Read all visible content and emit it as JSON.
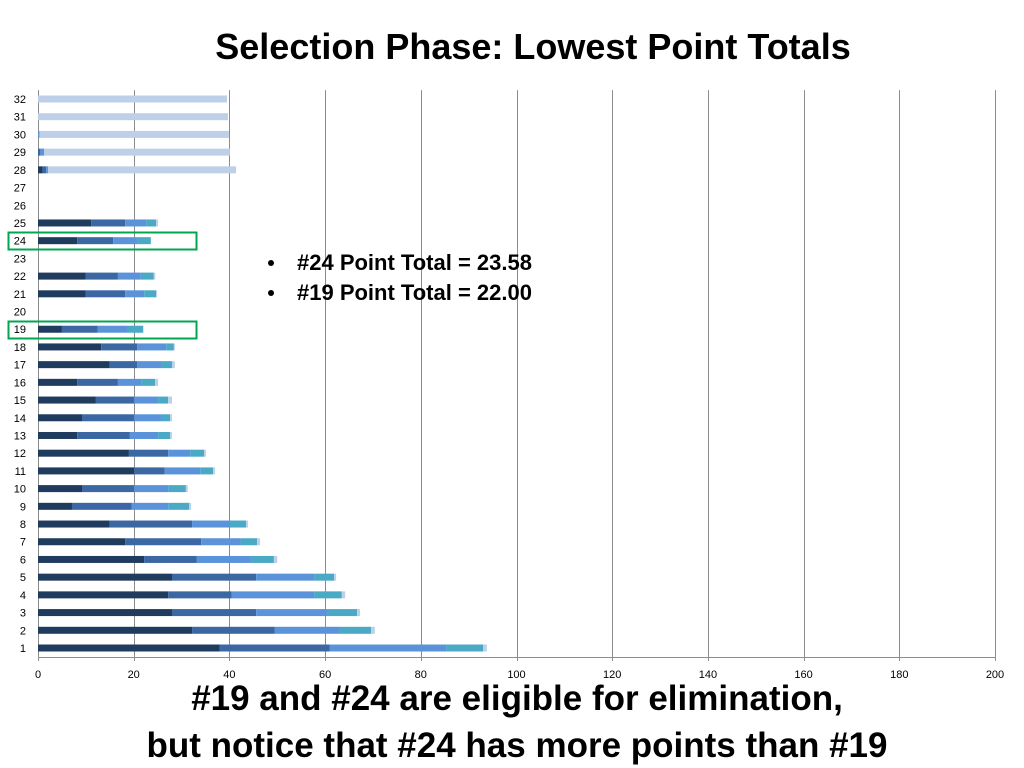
{
  "slide": {
    "title": "Selection Phase: Lowest Point Totals",
    "bullets": [
      "#24 Point Total = 23.58",
      "#19 Point Total = 22.00"
    ],
    "footer_lines": [
      "#19 and #24 are eligible for elimination,",
      "but notice that #24 has more points than #19"
    ]
  },
  "colors": {
    "highlight_box": "#00A650",
    "gridline": "#8C8C8C",
    "axis": "#8C8C8C",
    "text": "#000000"
  },
  "chart_data": {
    "type": "bar",
    "orientation": "horizontal",
    "stacked": true,
    "categories": [
      "1",
      "2",
      "3",
      "4",
      "5",
      "6",
      "7",
      "8",
      "9",
      "10",
      "11",
      "12",
      "13",
      "14",
      "15",
      "16",
      "17",
      "18",
      "19",
      "20",
      "21",
      "22",
      "23",
      "24",
      "25",
      "26",
      "27",
      "28",
      "29",
      "30",
      "31",
      "32"
    ],
    "series": [
      {
        "color": "#1F3B5E",
        "values": [
          38.0,
          32.2,
          28.0,
          27.2,
          28.0,
          22.2,
          18.2,
          15.0,
          7.1,
          9.2,
          20.1,
          19.0,
          8.2,
          9.2,
          12.1,
          8.2,
          15.0,
          13.2,
          5.0,
          0,
          10.0,
          10.0,
          0,
          8.2,
          11.1,
          0,
          0,
          1.0,
          0,
          0,
          0,
          0
        ]
      },
      {
        "color": "#3B67A3",
        "values": [
          23.0,
          17.3,
          17.6,
          13.3,
          17.6,
          11.0,
          15.9,
          17.2,
          12.5,
          10.9,
          6.4,
          8.2,
          11.0,
          10.9,
          8.0,
          8.5,
          5.7,
          7.5,
          7.5,
          0,
          8.2,
          6.7,
          0,
          7.5,
          7.1,
          0,
          0,
          0.7,
          0.5,
          0,
          0,
          0
        ]
      },
      {
        "color": "#5B93DA",
        "values": [
          24.3,
          13.4,
          14.8,
          17.2,
          12.1,
          11.3,
          8.3,
          7.9,
          7.6,
          7.1,
          7.4,
          4.6,
          5.9,
          5.6,
          5.0,
          5.0,
          5.0,
          6.1,
          6.1,
          0,
          4.0,
          4.8,
          0,
          5.0,
          4.4,
          0,
          0,
          0.4,
          0.8,
          0.3,
          0,
          0
        ]
      },
      {
        "color": "#4AA9C5",
        "values": [
          7.7,
          6.7,
          6.3,
          5.8,
          4.2,
          4.8,
          3.4,
          3.4,
          4.4,
          3.7,
          2.7,
          2.9,
          2.5,
          1.9,
          2.1,
          2.8,
          2.3,
          1.6,
          3.4,
          0,
          2.5,
          2.7,
          0,
          2.88,
          2.1,
          0,
          0,
          0,
          0,
          0,
          0,
          0
        ]
      },
      {
        "color": "#BED0E8",
        "values": [
          0.8,
          0.8,
          0.6,
          0.7,
          0.4,
          0.7,
          0.6,
          0.4,
          0.4,
          0.4,
          0.4,
          0.4,
          0.4,
          0.4,
          0.8,
          0.6,
          0.6,
          0.2,
          0,
          0,
          0.2,
          0.3,
          0,
          0,
          0.4,
          0,
          0,
          39.3,
          38.8,
          39.6,
          39.7,
          39.5
        ]
      }
    ],
    "xlim": [
      0,
      200
    ],
    "xticks": [
      0,
      20,
      40,
      60,
      80,
      100,
      120,
      140,
      160,
      180,
      200
    ],
    "grid": "vertical",
    "legend": "none",
    "highlighted_categories": [
      "24",
      "19"
    ]
  }
}
